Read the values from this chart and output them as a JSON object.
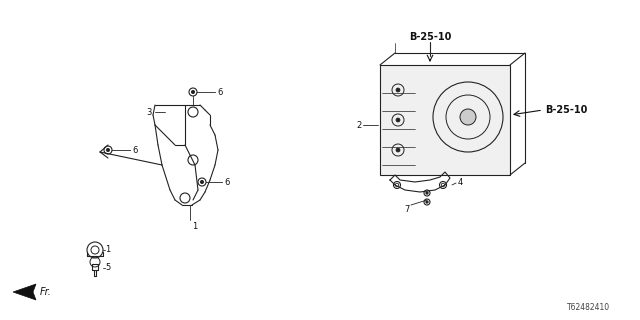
{
  "title": "",
  "bg_color": "#ffffff",
  "diagram_id": "T62482410",
  "labels": {
    "B_25_10_top": "B-25-10",
    "B_25_10_right": "B-25-10",
    "fr_label": "Fr.",
    "part1": "1",
    "part2": "2",
    "part3": "3",
    "part4": "4",
    "part5": "5",
    "part6a": "6",
    "part6b": "6",
    "part6c": "6",
    "part7": "7"
  },
  "line_color": "#222222",
  "text_color": "#111111",
  "arrow_color": "#111111"
}
